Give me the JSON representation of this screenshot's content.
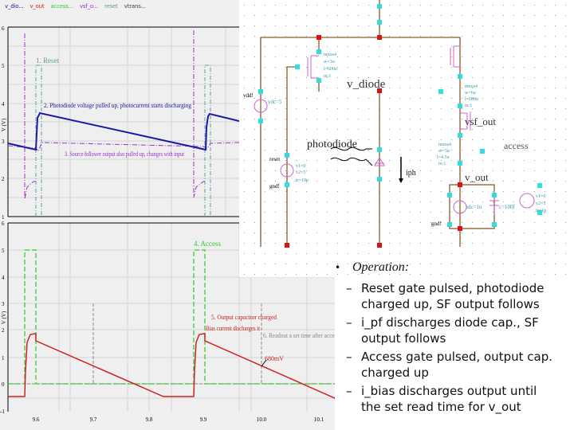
{
  "top_plot": {
    "legend": [
      "v_dio...",
      "v_out",
      "access...",
      "vsf_o...",
      "reset",
      "vtrans..."
    ],
    "y_axis_label": "V (V)",
    "y_ticks": [
      "6",
      "5",
      "4",
      "3",
      "2",
      "1"
    ],
    "annotations": {
      "reset": "1. Reset",
      "photodiode": "2. Photodiode voltage pulled up, photocurrent starts discharging",
      "source_follower": "3. Source follower output also pulled up, changes with input"
    },
    "colors": {
      "v_diode": "#1a1aa6",
      "vsf_out": "#9933cc",
      "reset": "#5f9ea0"
    }
  },
  "bottom_plot": {
    "y_axis_label": "V (V)",
    "y_ticks": [
      "6",
      "5",
      "4",
      "3",
      "2",
      "1",
      "0",
      "-1"
    ],
    "x_ticks": [
      "9.6",
      "9.7",
      "9.8",
      "9.9",
      "10.0",
      "10.1"
    ],
    "annotations": {
      "access": "4. Access",
      "output_cap": "5. Output capacitor charged",
      "bias": "Bias current discharges it",
      "readout": "6. Readout a set time after access",
      "value": "680mV"
    },
    "colors": {
      "access": "#33cc33",
      "v_out": "#cc2222",
      "readout": "#888888"
    }
  },
  "schematic": {
    "labels": {
      "v_diode": "v_diode",
      "photodiode": "photodiode",
      "vsf_out": "vsf_out",
      "access": "access",
      "v_out": "v_out",
      "iph": "iph",
      "vdd_src": "vdc=5",
      "idc": "idc=1u",
      "cap": "c=100f",
      "reset_pin": "reset",
      "gnd": "gnd!",
      "vdd": "vdd!"
    },
    "m0": [
      "nmos4",
      "w=3u",
      "l=600n",
      "m:1"
    ],
    "m1": [
      "nmos4",
      "w=6u",
      "l=600n",
      "m:1"
    ],
    "m2": [
      "nmos4",
      "w=3u",
      "l=4.5u",
      "m:1"
    ],
    "v_reset": [
      "v1=0",
      "v2=5",
      "tr=10p"
    ],
    "v_access": [
      "v1=0",
      "v2=5",
      "tr=1p"
    ]
  },
  "bullets": {
    "heading": "Operation:",
    "items": [
      [
        "Reset gate pulsed, photodiode",
        "charged up, SF output follows"
      ],
      [
        "i_pf discharges diode cap., SF",
        "output follows"
      ],
      [
        "Access gate pulsed, output cap.",
        "charged up"
      ],
      [
        "i_bias discharges output until",
        "the set read time for v_out"
      ]
    ]
  }
}
